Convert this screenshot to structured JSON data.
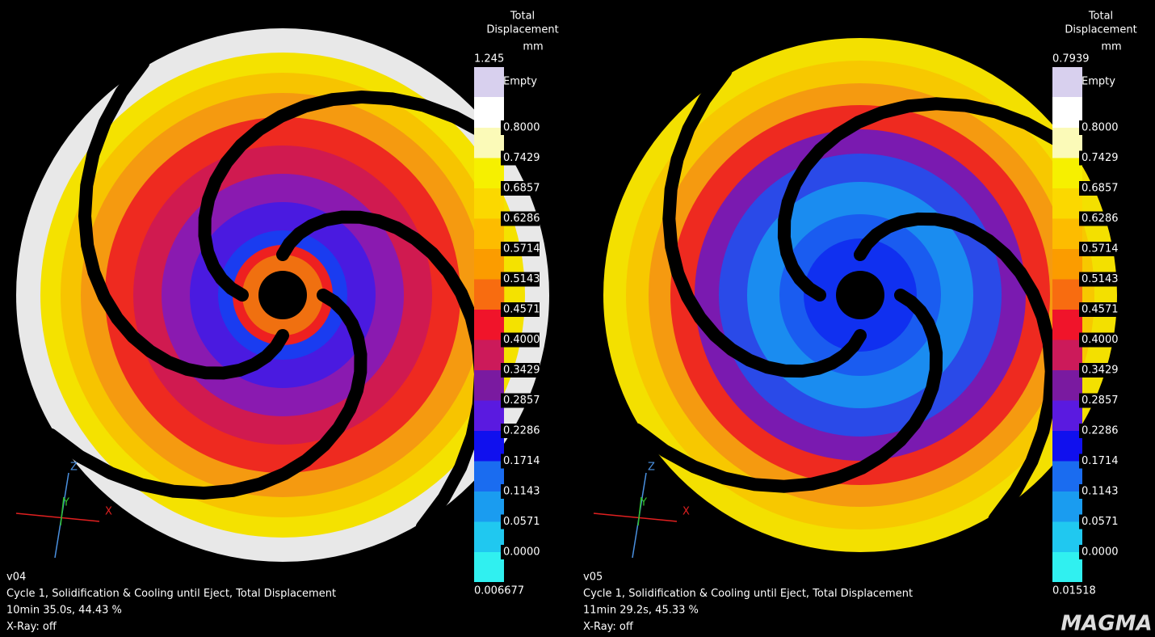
{
  "panels": [
    {
      "legend": {
        "title": [
          "Total",
          "Displacement"
        ],
        "unit": "mm",
        "max": "1.245",
        "empty": "Empty",
        "levels": [
          "0.8000",
          "0.7429",
          "0.6857",
          "0.6286",
          "0.5714",
          "0.5143",
          "0.4571",
          "0.4000",
          "0.3429",
          "0.2857",
          "0.2286",
          "0.1714",
          "0.1143",
          "0.0571",
          "0.0000"
        ],
        "min": "0.006677"
      },
      "footer": [
        "v04",
        "Cycle 1, Solidification & Cooling until Eject, Total Displacement",
        "10min 35.0s, 44.43 %",
        "X-Ray: off"
      ],
      "axes": [
        "Z",
        "Y",
        "X"
      ]
    },
    {
      "legend": {
        "title": [
          "Total",
          "Displacement"
        ],
        "unit": "mm",
        "max": "0.7939",
        "empty": "Empty",
        "levels": [
          "0.8000",
          "0.7429",
          "0.6857",
          "0.6286",
          "0.5714",
          "0.5143",
          "0.4571",
          "0.4000",
          "0.3429",
          "0.2857",
          "0.2286",
          "0.1714",
          "0.1143",
          "0.0571",
          "0.0000"
        ],
        "min": "0.01518"
      },
      "footer": [
        "v05",
        "Cycle 1, Solidification & Cooling until Eject, Total Displacement",
        "11min 29.2s, 45.33 %",
        "X-Ray: off"
      ],
      "axes": [
        "Z",
        "Y",
        "X"
      ]
    }
  ],
  "logo": "MAGMA"
}
